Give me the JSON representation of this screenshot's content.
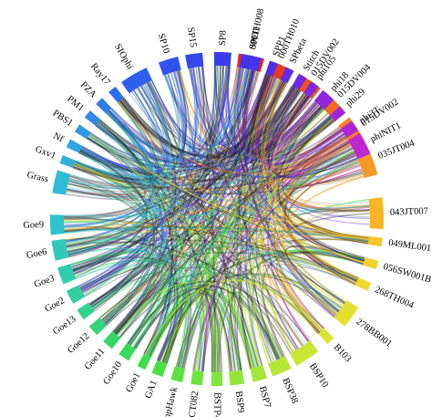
{
  "segments": [
    {
      "label": "000TH008",
      "color": "#e8231a"
    },
    {
      "label": "000TH010",
      "color": "#ec3a1c"
    },
    {
      "label": "015DV002",
      "color": "#ef521e"
    },
    {
      "label": "015DV004",
      "color": "#f06a20"
    },
    {
      "label": "015DV002",
      "color": "#f38222"
    },
    {
      "label": "035JT004",
      "color": "#f59a24"
    },
    {
      "label": "043JT007",
      "color": "#f7b527"
    },
    {
      "label": "049ML001",
      "color": "#f6c52a"
    },
    {
      "label": "056SW001B",
      "color": "#f2cf2c"
    },
    {
      "label": "268TH004",
      "color": "#eed82e"
    },
    {
      "label": "278BB001",
      "color": "#e5e030"
    },
    {
      "label": "B103",
      "color": "#d9e432"
    },
    {
      "label": "BSP10",
      "color": "#c8e634"
    },
    {
      "label": "BSP38",
      "color": "#b6e736"
    },
    {
      "label": "BSP7",
      "color": "#a4e738"
    },
    {
      "label": "BSP9",
      "color": "#92e63a"
    },
    {
      "label": "BSTP4",
      "color": "#80e53c"
    },
    {
      "label": "BUCT082",
      "color": "#6ee33e"
    },
    {
      "label": "CampHawk",
      "color": "#5ce141"
    },
    {
      "label": "GA1",
      "color": "#4bdf44"
    },
    {
      "label": "Goe1",
      "color": "#3ddd4b"
    },
    {
      "label": "Goe10",
      "color": "#37da5a"
    },
    {
      "label": "Goe11",
      "color": "#35d76b"
    },
    {
      "label": "Goe12",
      "color": "#34d47c"
    },
    {
      "label": "Goe13",
      "color": "#33d18d"
    },
    {
      "label": "Goe2",
      "color": "#32ce9e"
    },
    {
      "label": "Goe3",
      "color": "#31cbae"
    },
    {
      "label": "Goe6",
      "color": "#30c8bd"
    },
    {
      "label": "Goe9",
      "color": "#2fc4cb"
    },
    {
      "label": "Grass",
      "color": "#2fbcd7"
    },
    {
      "label": "Gxv1",
      "color": "#2fb1dc"
    },
    {
      "label": "Nf",
      "color": "#2fa5e0"
    },
    {
      "label": "PBS1",
      "color": "#2f98e3"
    },
    {
      "label": "PM1",
      "color": "#2f8ae6"
    },
    {
      "label": "PZA",
      "color": "#2f7ce8"
    },
    {
      "label": "Ray17",
      "color": "#2f6eea"
    },
    {
      "label": "SIOphi",
      "color": "#2f60eb"
    },
    {
      "label": "SP10",
      "color": "#3053ec"
    },
    {
      "label": "SP15",
      "color": "#3447ec"
    },
    {
      "label": "SP8",
      "color": "#3a3deb"
    },
    {
      "label": "SPO1",
      "color": "#4535ea"
    },
    {
      "label": "SPP1",
      "color": "#5230e8"
    },
    {
      "label": "SPbeta",
      "color": "#602ce6"
    },
    {
      "label": "Stitch",
      "color": "#6e2ae3"
    },
    {
      "label": "phi105",
      "color": "#7d28e0"
    },
    {
      "label": "phi18",
      "color": "#8d26dd"
    },
    {
      "label": "phi29",
      "color": "#9d25da"
    },
    {
      "label": "phi3T",
      "color": "#ae25d6"
    },
    {
      "label": "phiNIT1",
      "color": "#c027d2"
    }
  ]
}
